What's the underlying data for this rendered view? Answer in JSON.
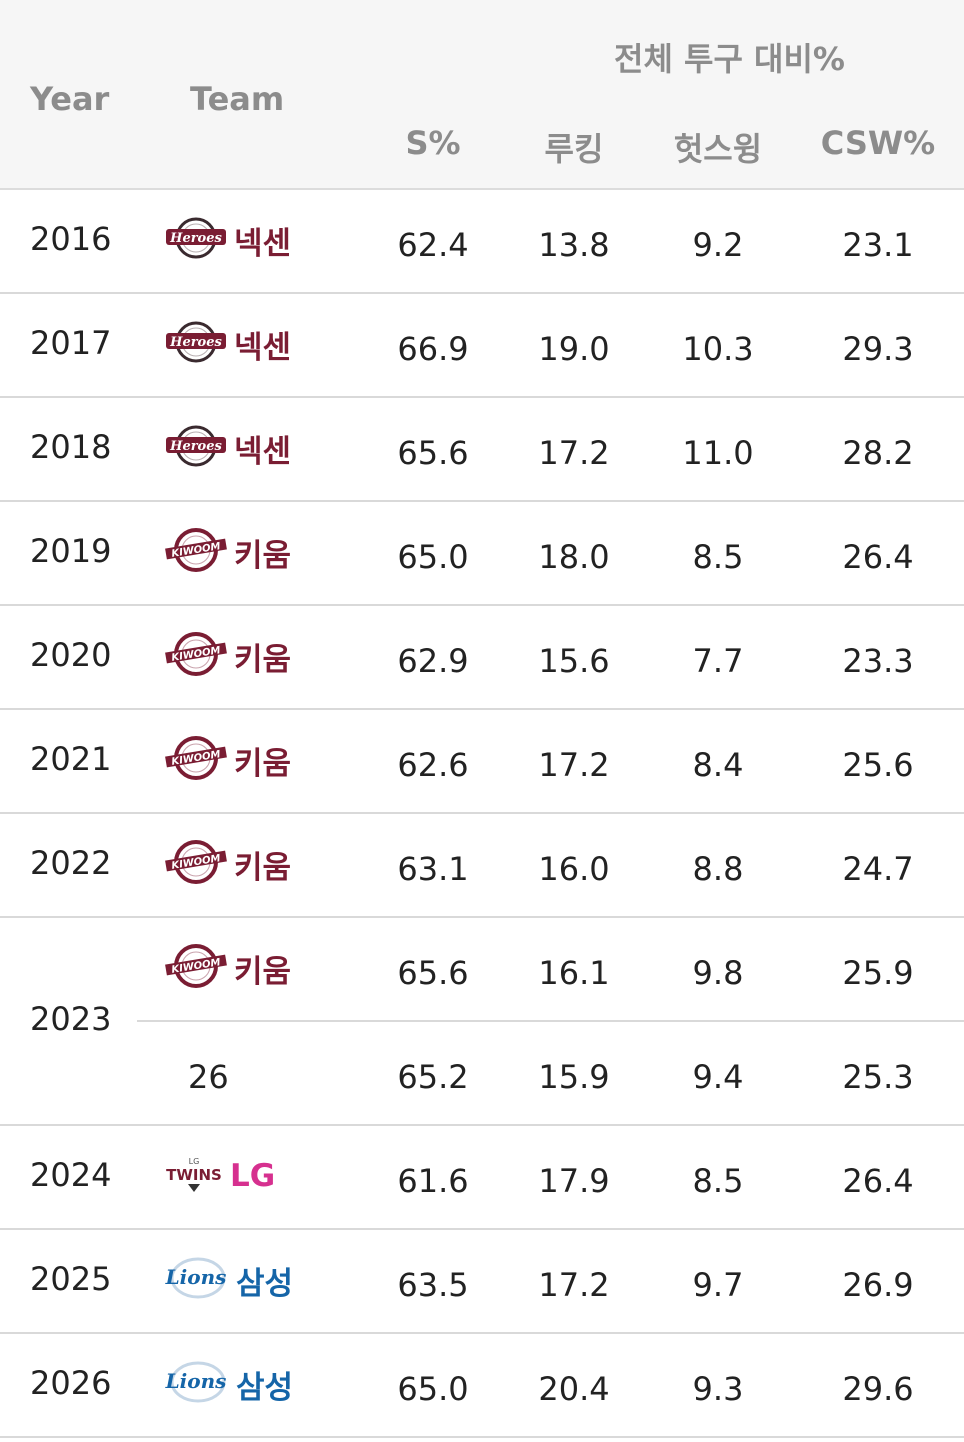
{
  "header": {
    "year": "Year",
    "team": "Team",
    "group": "전체 투구 대비%",
    "s_pct": "S%",
    "looking": "루킹",
    "whiff": "헛스윙",
    "csw": "CSW%"
  },
  "colors": {
    "nexen": "#7a1d33",
    "kiwoom": "#7a1d33",
    "lg": "#d6308f",
    "samsung": "#1565a8"
  },
  "rows": [
    {
      "year": "2016",
      "team": "넥센",
      "logo": "heroes-logo",
      "s": "62.4",
      "look": "13.8",
      "whiff": "9.2",
      "csw": "23.1"
    },
    {
      "year": "2017",
      "team": "넥센",
      "logo": "heroes-logo",
      "s": "66.9",
      "look": "19.0",
      "whiff": "10.3",
      "csw": "29.3"
    },
    {
      "year": "2018",
      "team": "넥센",
      "logo": "heroes-logo",
      "s": "65.6",
      "look": "17.2",
      "whiff": "11.0",
      "csw": "28.2"
    },
    {
      "year": "2019",
      "team": "키움",
      "logo": "kiwoom-logo",
      "s": "65.0",
      "look": "18.0",
      "whiff": "8.5",
      "csw": "26.4"
    },
    {
      "year": "2020",
      "team": "키움",
      "logo": "kiwoom-logo",
      "s": "62.9",
      "look": "15.6",
      "whiff": "7.7",
      "csw": "23.3"
    },
    {
      "year": "2021",
      "team": "키움",
      "logo": "kiwoom-logo",
      "s": "62.6",
      "look": "17.2",
      "whiff": "8.4",
      "csw": "25.6"
    },
    {
      "year": "2022",
      "team": "키움",
      "logo": "kiwoom-logo",
      "s": "63.1",
      "look": "16.0",
      "whiff": "8.8",
      "csw": "24.7"
    },
    {
      "year": "2023",
      "team": "키움",
      "logo": "kiwoom-logo",
      "s": "65.6",
      "look": "16.1",
      "whiff": "9.8",
      "csw": "25.9",
      "sub": {
        "team": "26",
        "s": "65.2",
        "look": "15.9",
        "whiff": "9.4",
        "csw": "25.3"
      }
    },
    {
      "year": "2024",
      "team": "LG",
      "logo": "lg-twins-logo",
      "s": "61.6",
      "look": "17.9",
      "whiff": "8.5",
      "csw": "26.4"
    },
    {
      "year": "2025",
      "team": "삼성",
      "logo": "samsung-lions-logo",
      "s": "63.5",
      "look": "17.2",
      "whiff": "9.7",
      "csw": "26.9"
    },
    {
      "year": "2026",
      "team": "삼성",
      "logo": "samsung-lions-logo",
      "s": "65.0",
      "look": "20.4",
      "whiff": "9.3",
      "csw": "29.6"
    }
  ]
}
